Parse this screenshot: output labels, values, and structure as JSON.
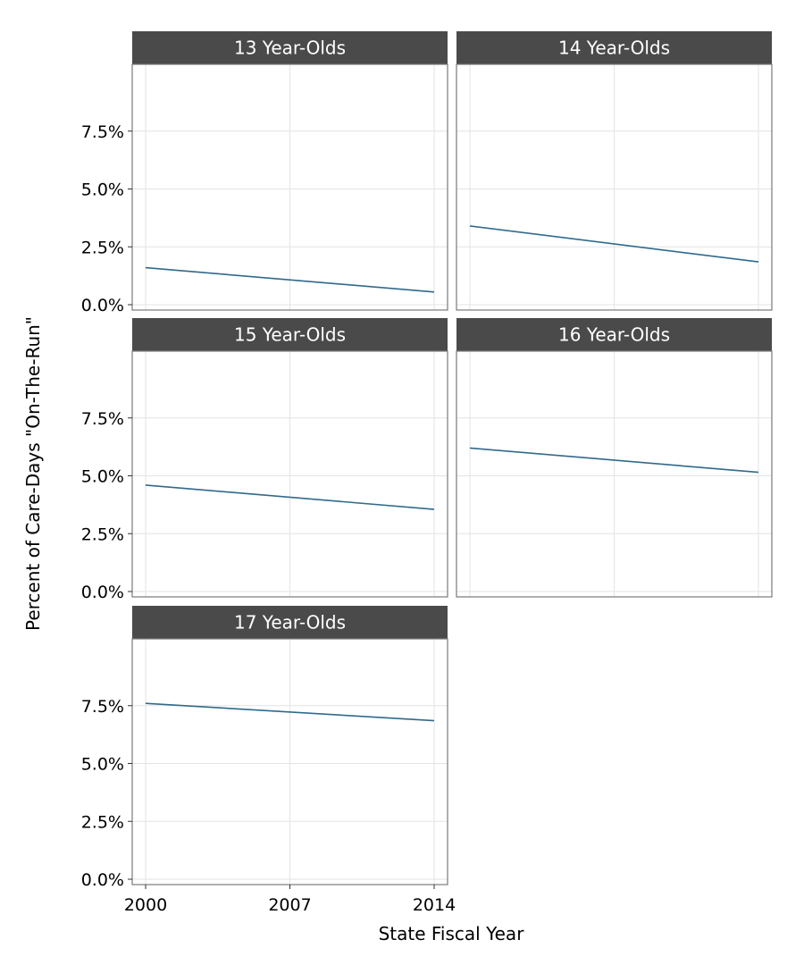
{
  "chart_data": {
    "type": "line",
    "xlabel": "State Fiscal Year",
    "ylabel": "Percent of Care-Days \"On-The-Run\"",
    "x_ticks": [
      "2000",
      "2007",
      "2014"
    ],
    "y_ticks": [
      "0.0%",
      "2.5%",
      "5.0%",
      "7.5%"
    ],
    "xlim": [
      2000,
      2014
    ],
    "ylim": [
      0,
      10
    ],
    "grid": true,
    "colors": {
      "line": "#2f6a8a",
      "strip_bg": "#4a4a4a",
      "grid": "#e3e3e3",
      "panel_border": "#7a7a7a"
    },
    "panels": [
      {
        "label": "13 Year-Olds",
        "x": [
          2000,
          2014
        ],
        "y": [
          1.6,
          0.55
        ]
      },
      {
        "label": "14 Year-Olds",
        "x": [
          2000,
          2014
        ],
        "y": [
          3.4,
          1.85
        ]
      },
      {
        "label": "15 Year-Olds",
        "x": [
          2000,
          2014
        ],
        "y": [
          4.6,
          3.55
        ]
      },
      {
        "label": "16 Year-Olds",
        "x": [
          2000,
          2014
        ],
        "y": [
          6.2,
          5.15
        ]
      },
      {
        "label": "17 Year-Olds",
        "x": [
          2000,
          2014
        ],
        "y": [
          7.6,
          6.85
        ]
      }
    ]
  }
}
